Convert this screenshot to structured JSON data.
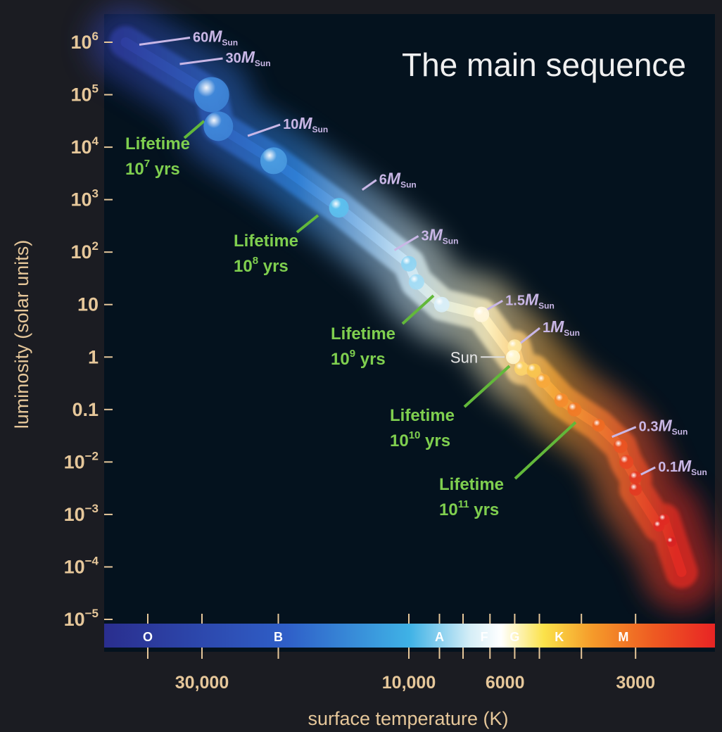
{
  "chart_data": {
    "type": "scatter",
    "title": "The main sequence",
    "xlabel": "surface temperature (K)",
    "ylabel": "luminosity (solar units)",
    "x_scale": "log",
    "x_reversed": true,
    "y_scale": "log",
    "ylim": [
      1e-05,
      1000000.0
    ],
    "y_ticks": [
      {
        "value": 1000000.0,
        "base": "10",
        "exp": "6"
      },
      {
        "value": 100000.0,
        "base": "10",
        "exp": "5"
      },
      {
        "value": 10000.0,
        "base": "10",
        "exp": "4"
      },
      {
        "value": 1000.0,
        "base": "10",
        "exp": "3"
      },
      {
        "value": 100.0,
        "base": "10",
        "exp": "2"
      },
      {
        "value": 10,
        "base": "10",
        "exp": ""
      },
      {
        "value": 1,
        "base": "1",
        "exp": ""
      },
      {
        "value": 0.1,
        "base": "0.1",
        "exp": ""
      },
      {
        "value": 0.01,
        "base": "10",
        "exp": "−2"
      },
      {
        "value": 0.001,
        "base": "10",
        "exp": "−3"
      },
      {
        "value": 0.0001,
        "base": "10",
        "exp": "−4"
      },
      {
        "value": 1e-05,
        "base": "10",
        "exp": "−5"
      }
    ],
    "x_tick_labels": [
      {
        "value": 30000,
        "label": "30,000"
      },
      {
        "value": 10000,
        "label": "10,000"
      },
      {
        "value": 6000,
        "label": "6000"
      },
      {
        "value": 3000,
        "label": "3000"
      }
    ],
    "spectral_classes": [
      {
        "label": "O",
        "temperature": 40000
      },
      {
        "label": "B",
        "temperature": 20000
      },
      {
        "label": "A",
        "temperature": 8500
      },
      {
        "label": "F",
        "temperature": 6700
      },
      {
        "label": "G",
        "temperature": 5700
      },
      {
        "label": "K",
        "temperature": 4500
      },
      {
        "label": "M",
        "temperature": 3200
      }
    ],
    "spectral_tick_temperatures": [
      40000,
      30000,
      20000,
      10000,
      8500,
      7500,
      6500,
      5700,
      5000,
      4000,
      3000
    ],
    "stars": [
      {
        "temperature": 28500,
        "luminosity": 100000,
        "color": "#3f86d8",
        "r": 25
      },
      {
        "temperature": 27500,
        "luminosity": 25000,
        "color": "#3f86d8",
        "r": 21
      },
      {
        "temperature": 20500,
        "luminosity": 5500,
        "color": "#4a9be0",
        "r": 19
      },
      {
        "temperature": 14500,
        "luminosity": 700,
        "color": "#5cc0ee",
        "r": 14
      },
      {
        "temperature": 10000,
        "luminosity": 60,
        "color": "#8fd4f3",
        "r": 11
      },
      {
        "temperature": 9600,
        "luminosity": 27,
        "color": "#a3dcf5",
        "r": 11
      },
      {
        "temperature": 8400,
        "luminosity": 10,
        "color": "#d8eef8",
        "r": 11
      },
      {
        "temperature": 6800,
        "luminosity": 6.5,
        "color": "#fff6dc",
        "r": 11
      },
      {
        "temperature": 5700,
        "luminosity": 1.6,
        "color": "#fde6a0",
        "r": 10
      },
      {
        "temperature": 5750,
        "luminosity": 1.0,
        "color": "#fff7cf",
        "r": 10
      },
      {
        "temperature": 5500,
        "luminosity": 0.6,
        "color": "#fbd36a",
        "r": 10
      },
      {
        "temperature": 5150,
        "luminosity": 0.55,
        "color": "#f8c44e",
        "r": 10
      },
      {
        "temperature": 4900,
        "luminosity": 0.35,
        "color": "#f7a83a",
        "r": 10
      },
      {
        "temperature": 4450,
        "luminosity": 0.15,
        "color": "#f48a2c",
        "r": 10
      },
      {
        "temperature": 4150,
        "luminosity": 0.1,
        "color": "#f07a26",
        "r": 10
      },
      {
        "temperature": 3650,
        "luminosity": 0.05,
        "color": "#ee6a22",
        "r": 9
      },
      {
        "temperature": 3250,
        "luminosity": 0.02,
        "color": "#ea5322",
        "r": 10
      },
      {
        "temperature": 3150,
        "luminosity": 0.01,
        "color": "#e84622",
        "r": 10
      },
      {
        "temperature": 3000,
        "luminosity": 0.005,
        "color": "#e43b22",
        "r": 9
      },
      {
        "temperature": 3000,
        "luminosity": 0.003,
        "color": "#e23a22",
        "r": 9
      },
      {
        "temperature": 2580,
        "luminosity": 0.0008,
        "color": "#e02a22",
        "r": 8
      },
      {
        "temperature": 2650,
        "luminosity": 0.0006,
        "color": "#e02a22",
        "r": 8
      },
      {
        "temperature": 2480,
        "luminosity": 0.0003,
        "color": "#d82222",
        "r": 7
      }
    ],
    "mass_labels": [
      {
        "mass": "60",
        "temperature": 40000,
        "luminosity": 700000
      },
      {
        "mass": "30",
        "temperature": 33000,
        "luminosity": 300000
      },
      {
        "mass": "10",
        "temperature": 23000,
        "luminosity": 10000
      },
      {
        "mass": "6",
        "temperature": 13000,
        "luminosity": 1200
      },
      {
        "mass": "3",
        "temperature": 10400,
        "luminosity": 85
      },
      {
        "mass": "1.5",
        "temperature": 6700,
        "luminosity": 6
      },
      {
        "mass": "1",
        "temperature": 5500,
        "luminosity": 1.6
      },
      {
        "mass": "0.3",
        "temperature": 3350,
        "luminosity": 0.025
      },
      {
        "mass": "0.1",
        "temperature": 3000,
        "luminosity": 0.004
      }
    ],
    "sun_label": "Sun",
    "mass_unit": "M",
    "mass_subscript": "Sun",
    "lifetime_labels": [
      {
        "word": "Lifetime",
        "base": "10",
        "exp": "7",
        "unit": "yrs"
      },
      {
        "word": "Lifetime",
        "base": "10",
        "exp": "8",
        "unit": "yrs"
      },
      {
        "word": "Lifetime",
        "base": "10",
        "exp": "9",
        "unit": "yrs"
      },
      {
        "word": "Lifetime",
        "base": "10",
        "exp": "10",
        "unit": "yrs"
      },
      {
        "word": "Lifetime",
        "base": "10",
        "exp": "11",
        "unit": "yrs"
      }
    ],
    "colors": {
      "background": "#04121e",
      "axis_text": "#e6c79a",
      "lifetime_text": "#7fcf4f",
      "mass_text": "#c9b7e6",
      "title_text": "#f0f0f0"
    },
    "grid": false,
    "legend": "none"
  }
}
